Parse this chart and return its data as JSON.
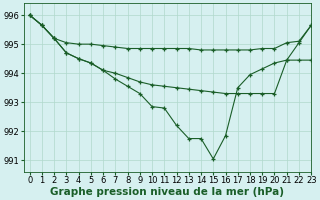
{
  "title": "Graphe pression niveau de la mer (hPa)",
  "bg_color": "#d6f0f0",
  "grid_color": "#b0d8cc",
  "line_color": "#1a5e28",
  "marker_color": "#1a5e28",
  "xlim": [
    -0.5,
    23
  ],
  "ylim": [
    990.6,
    996.4
  ],
  "yticks": [
    991,
    992,
    993,
    994,
    995,
    996
  ],
  "xtick_labels": [
    "0",
    "1",
    "2",
    "3",
    "4",
    "5",
    "6",
    "7",
    "8",
    "9",
    "10",
    "11",
    "12",
    "13",
    "14",
    "15",
    "16",
    "17",
    "18",
    "19",
    "20",
    "21",
    "22",
    "23"
  ],
  "series": [
    {
      "x": [
        0,
        1,
        2,
        3,
        4,
        5,
        6,
        7,
        8,
        9,
        10,
        11,
        12,
        13,
        14,
        15,
        16,
        17,
        18,
        19,
        20,
        21,
        22,
        23
      ],
      "y": [
        996.0,
        995.65,
        995.2,
        995.05,
        995.0,
        995.0,
        994.95,
        994.9,
        994.85,
        994.85,
        994.85,
        994.85,
        994.85,
        994.85,
        994.8,
        994.8,
        994.8,
        994.8,
        994.8,
        994.85,
        994.85,
        995.05,
        995.1,
        995.65
      ]
    },
    {
      "x": [
        0,
        1,
        2,
        3,
        4,
        5,
        6,
        7,
        8,
        9,
        10,
        11,
        12,
        13,
        14,
        15,
        16,
        17,
        18,
        19,
        20,
        21,
        22,
        23
      ],
      "y": [
        996.0,
        995.65,
        995.2,
        994.7,
        994.5,
        994.35,
        994.1,
        994.0,
        993.85,
        993.7,
        993.6,
        993.55,
        993.5,
        993.45,
        993.4,
        993.35,
        993.3,
        993.3,
        993.3,
        993.3,
        993.3,
        994.45,
        994.45,
        994.45
      ]
    },
    {
      "x": [
        0,
        1,
        2,
        3,
        4,
        5,
        6,
        7,
        8,
        9,
        10,
        11,
        12,
        13,
        14,
        15,
        16,
        17,
        18,
        19,
        20,
        21,
        22,
        23
      ],
      "y": [
        996.0,
        995.65,
        995.2,
        994.7,
        994.5,
        994.35,
        994.1,
        993.8,
        993.55,
        993.3,
        992.85,
        992.8,
        992.2,
        991.75,
        991.75,
        991.05,
        991.85,
        993.5,
        993.95,
        994.15,
        994.35,
        994.45,
        995.05,
        995.65
      ]
    }
  ],
  "title_fontsize": 7.5,
  "tick_fontsize": 6.0
}
